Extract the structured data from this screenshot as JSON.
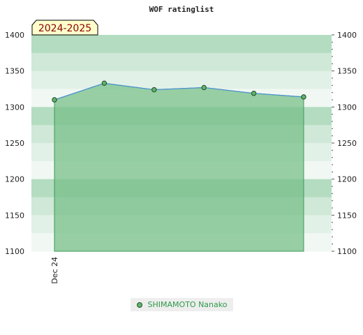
{
  "chart_data": {
    "type": "area",
    "title": "WOF ratinglist",
    "badge": "2024-2025",
    "x_tick_labels": [
      "Dec 24"
    ],
    "ylim": [
      1100,
      1400
    ],
    "y_ticks": [
      1100,
      1150,
      1200,
      1250,
      1300,
      1350,
      1400
    ],
    "grid": true,
    "legend_position": "bottom",
    "series": [
      {
        "name": "SHIMAMOTO Nanako",
        "values": [
          1310,
          1333,
          1324,
          1327,
          1319,
          1314
        ]
      }
    ],
    "colors": {
      "line": "#4a8fd6",
      "area": "#78c08a",
      "point": "#5fb36a",
      "badge_bg": "#ffffcc"
    }
  }
}
